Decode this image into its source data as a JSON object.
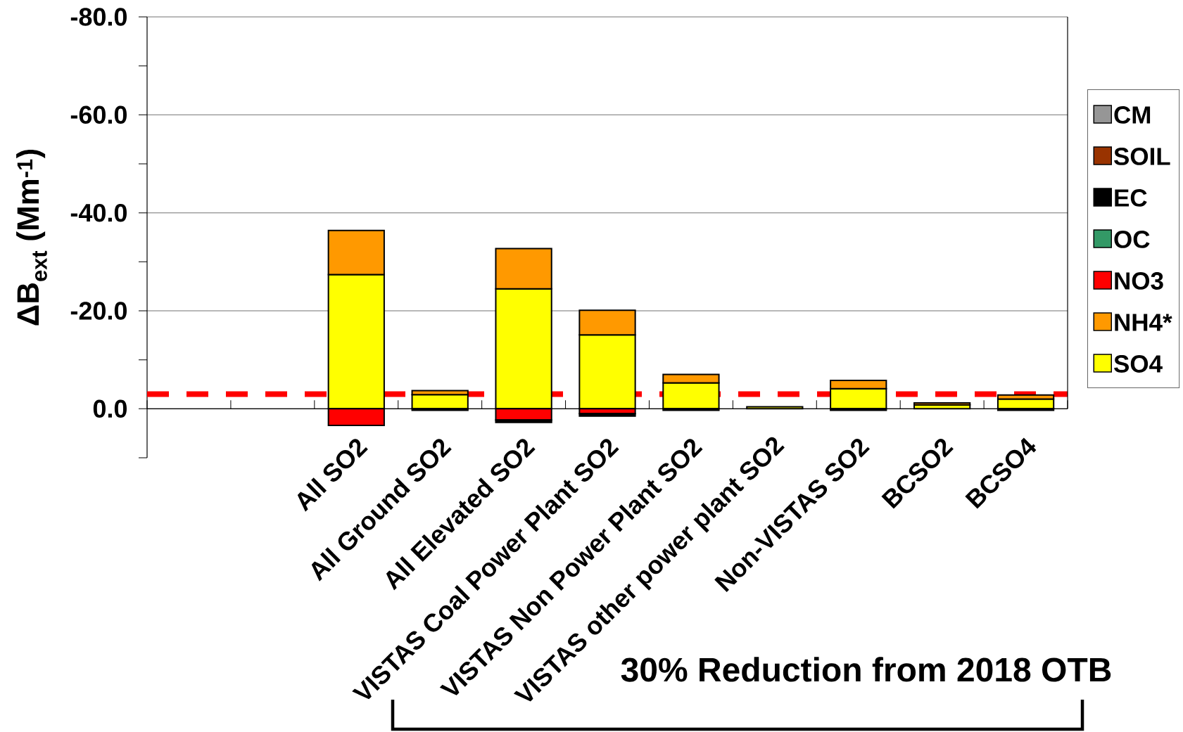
{
  "chart_data": {
    "type": "bar",
    "stacked": true,
    "ylabel": "ΔB$_{ext}$ (Mm$^{-1}$)",
    "annotations": [
      "30% Reduction from 2018 OTB"
    ],
    "categories": [
      null,
      null,
      "All SO2",
      "All Ground SO2",
      "All Elevated SO2",
      "VISTAS Coal Power Plant SO2",
      "VISTAS Non Power Plant SO2",
      "VISTAS other power plant SO2",
      "Non-VISTAS SO2",
      "BCSO2",
      "BCSO4"
    ],
    "series": [
      {
        "name": "SO4",
        "color": "#ffff00",
        "values": [
          null,
          null,
          -27.4,
          -2.9,
          -24.5,
          -15.1,
          -5.3,
          -0.4,
          -4.1,
          -0.8,
          -2.0
        ]
      },
      {
        "name": "NH4*",
        "color": "#ff9900",
        "values": [
          null,
          null,
          -9.0,
          -0.8,
          -8.2,
          -5.0,
          -1.7,
          null,
          -1.7,
          -0.4,
          -0.8
        ]
      },
      {
        "name": "NO3",
        "color": "#ff0000",
        "values": [
          null,
          null,
          3.4,
          null,
          2.3,
          1.0,
          null,
          null,
          null,
          null,
          null
        ]
      },
      {
        "name": "OC",
        "color": "#339966",
        "values": [
          null,
          null,
          null,
          null,
          null,
          null,
          null,
          null,
          null,
          null,
          null
        ]
      },
      {
        "name": "EC",
        "color": "#000000",
        "values": [
          null,
          null,
          null,
          0.3,
          0.5,
          0.5,
          0.3,
          null,
          0.3,
          null,
          0.3
        ]
      },
      {
        "name": "SOIL",
        "color": "#993300",
        "values": [
          null,
          null,
          null,
          null,
          null,
          null,
          null,
          null,
          null,
          null,
          null
        ]
      },
      {
        "name": "CM",
        "color": "#969696",
        "values": [
          null,
          null,
          null,
          null,
          null,
          null,
          null,
          null,
          null,
          null,
          null
        ]
      }
    ],
    "ylim": [
      10,
      -80
    ],
    "yticks": [
      {
        "value": -80,
        "label": "-80.0"
      },
      {
        "value": -70,
        "label": null
      },
      {
        "value": -60,
        "label": "-60.0"
      },
      {
        "value": -50,
        "label": null
      },
      {
        "value": -40,
        "label": "-40.0"
      },
      {
        "value": -30,
        "label": null
      },
      {
        "value": -20,
        "label": "-20.0"
      },
      {
        "value": -10,
        "label": null
      },
      {
        "value": 0,
        "label": "0.0"
      },
      {
        "value": 10,
        "label": null
      }
    ],
    "grid": "y",
    "legend": "right",
    "ref_lines": [
      {
        "axis": "y",
        "value": -3,
        "color": "#ff0000",
        "line_style": "dashed"
      }
    ]
  }
}
